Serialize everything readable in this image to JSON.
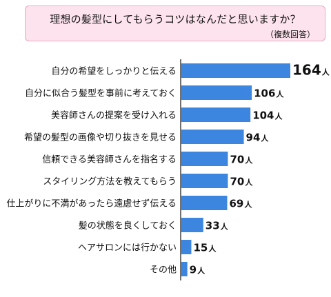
{
  "title": "理想の髪型にしてもらうコツはなんだと思いますか？",
  "subtitle": "（複数回答）",
  "colors": {
    "bar": "#3d86e0",
    "axis": "#111111",
    "title_bg": "#fde3ee",
    "title_border": "#e6a9c2"
  },
  "chart_data": {
    "type": "bar",
    "orientation": "horizontal",
    "title": "理想の髪型にしてもらうコツはなんだと思いますか？",
    "subtitle": "（複数回答）",
    "unit": "人",
    "categories": [
      "自分の希望をしっかりと伝える",
      "自分に似合う髪型を事前に考えておく",
      "美容師さんの提案を受け入れる",
      "希望の髪型の画像や切り抜きを見せる",
      "信頼できる美容師さんを指名する",
      "スタイリング方法を教えてもらう",
      "仕上がりに不満があったら遠慮せず伝える",
      "髪の状態を良くしておく",
      "ヘアサロンには行かない",
      "その他"
    ],
    "values": [
      164,
      106,
      104,
      94,
      70,
      70,
      69,
      33,
      15,
      9
    ],
    "value_labels": [
      "164",
      "106",
      "104",
      "94",
      "70",
      "70",
      "69",
      "33",
      "15",
      "9"
    ],
    "xlim": [
      0,
      164
    ],
    "grid": false,
    "legend": "none"
  }
}
